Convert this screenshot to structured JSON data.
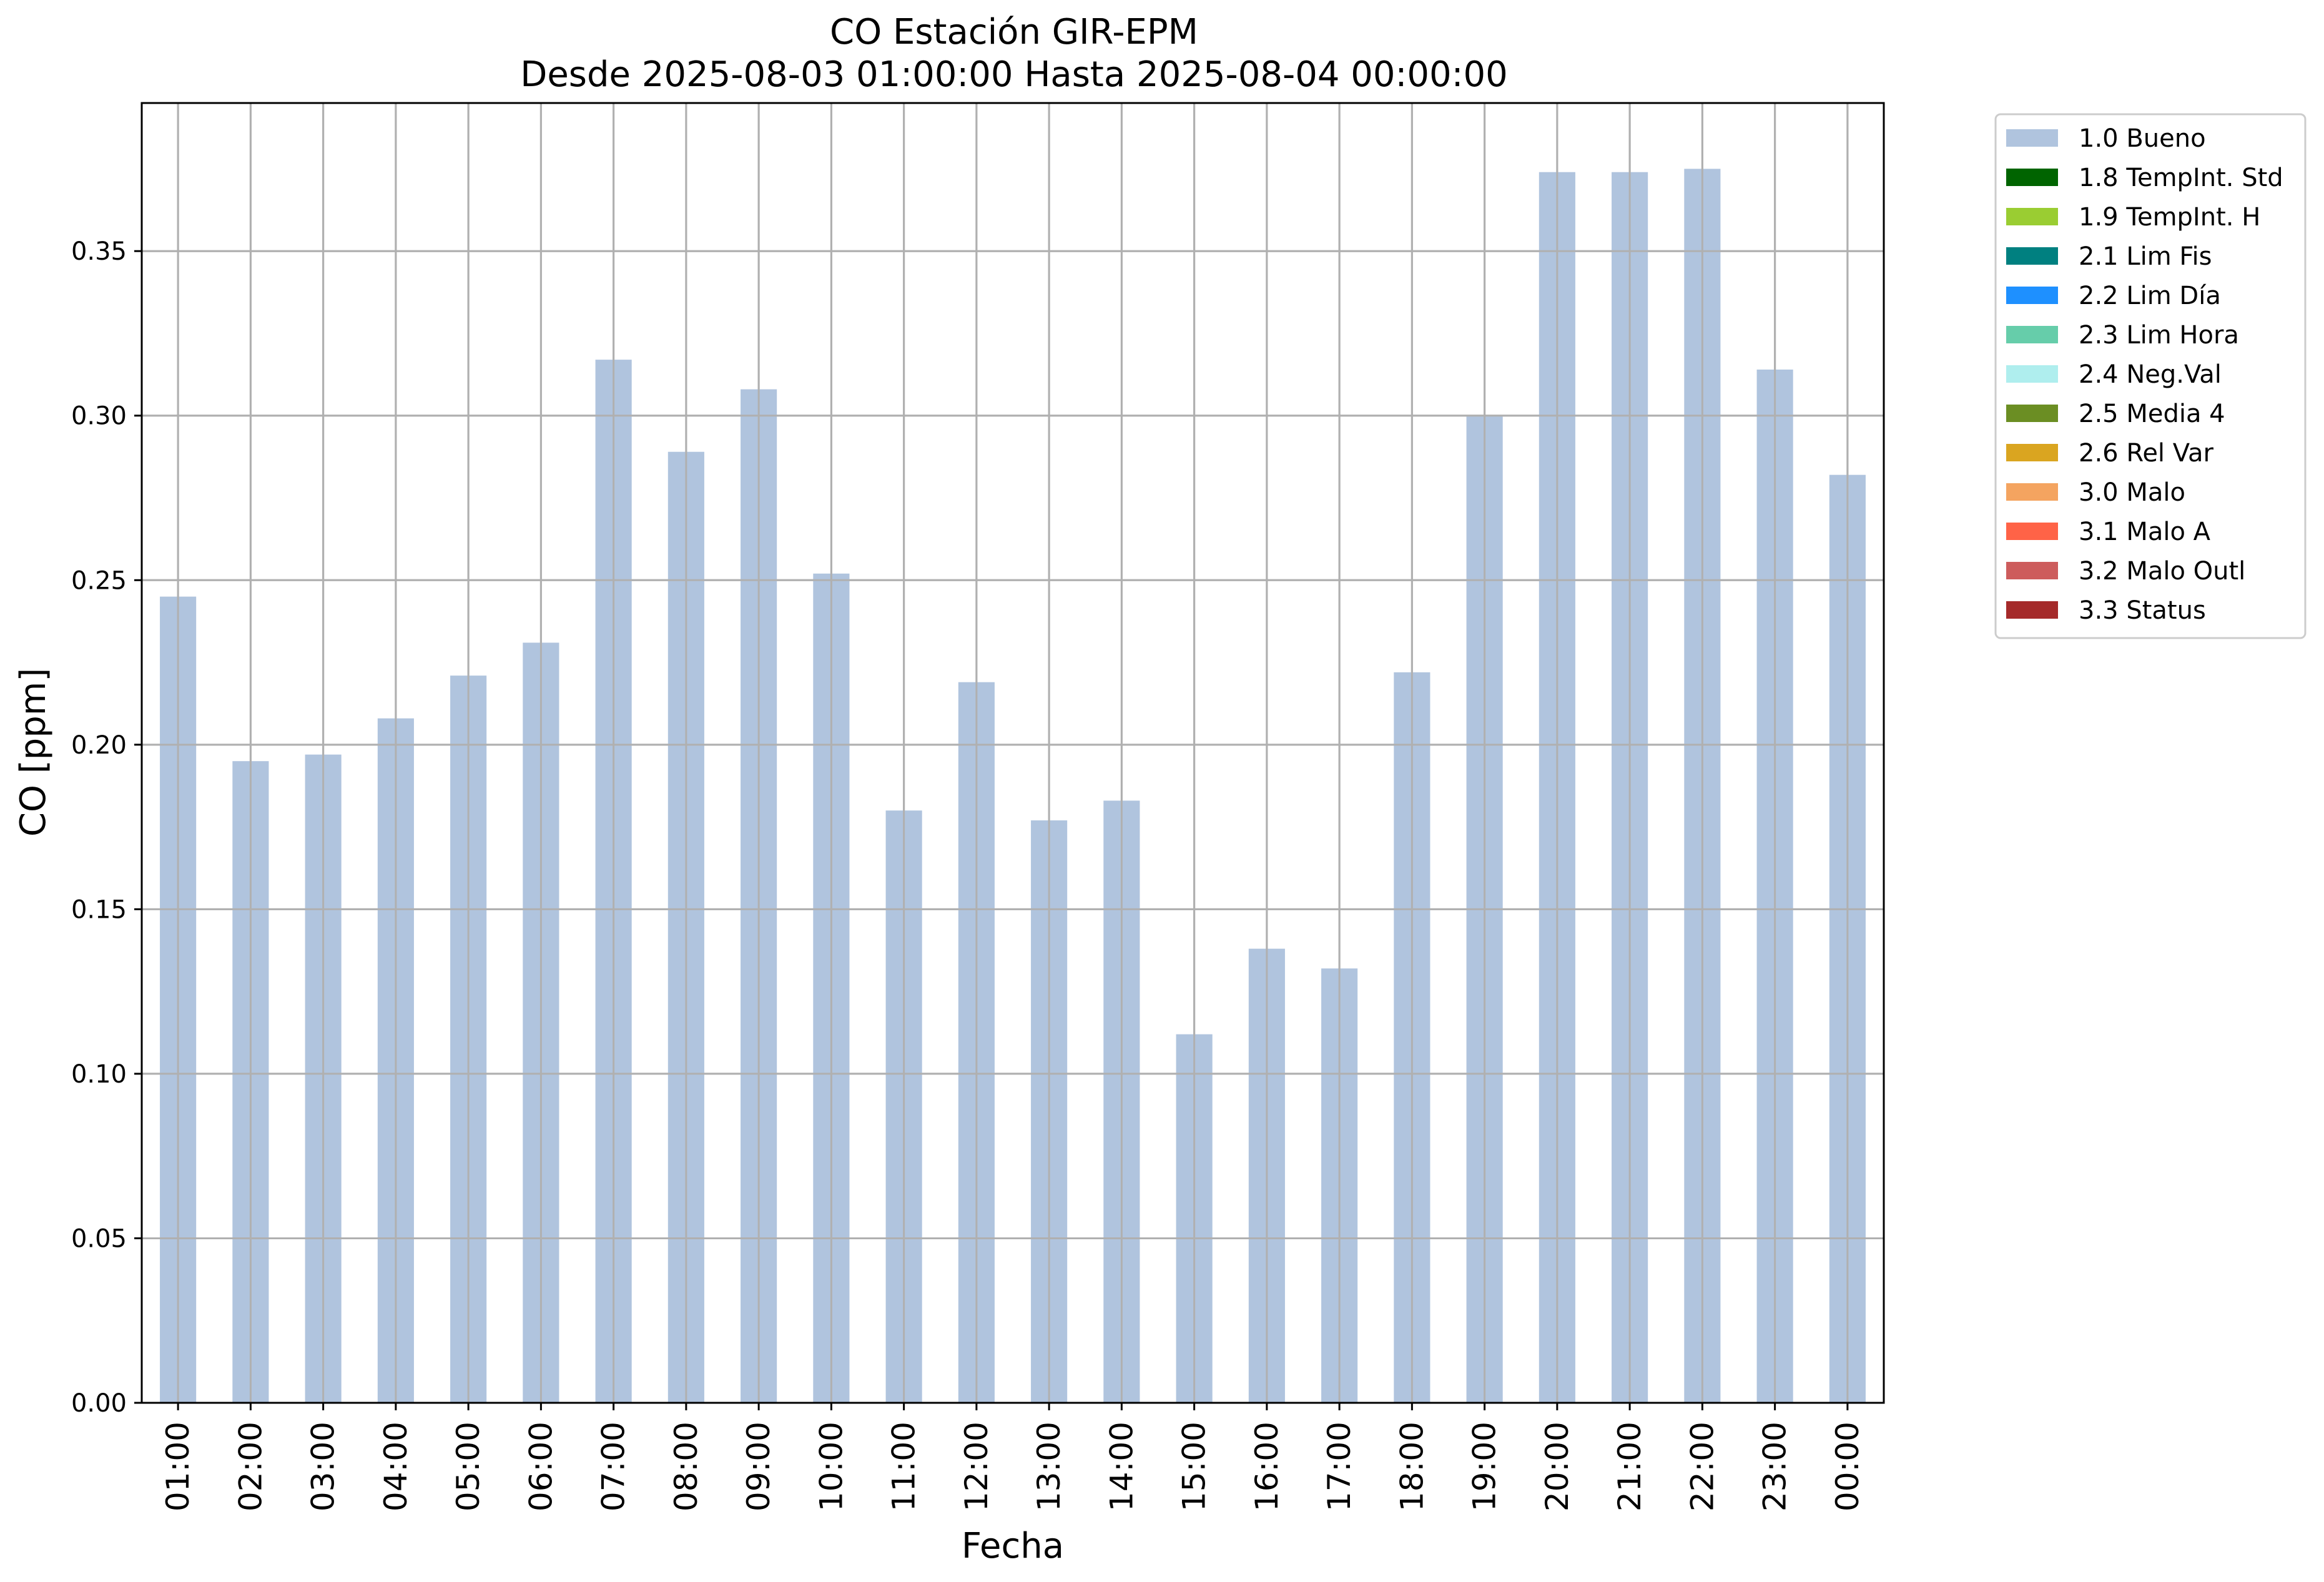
{
  "chart_data": {
    "type": "bar",
    "title": "CO Estación GIR-EPM",
    "subtitle": "Desde 2025-08-03 01:00:00 Hasta 2025-08-04 00:00:00",
    "xlabel": "Fecha",
    "ylabel": "CO [ppm]",
    "ylim": [
      0,
      0.395
    ],
    "yticks": [
      "0.00",
      "0.05",
      "0.10",
      "0.15",
      "0.20",
      "0.25",
      "0.30",
      "0.35"
    ],
    "grid": true,
    "legend_position": "outside-top-right",
    "categories": [
      "01:00",
      "02:00",
      "03:00",
      "04:00",
      "05:00",
      "06:00",
      "07:00",
      "08:00",
      "09:00",
      "10:00",
      "11:00",
      "12:00",
      "13:00",
      "14:00",
      "15:00",
      "16:00",
      "17:00",
      "18:00",
      "19:00",
      "20:00",
      "21:00",
      "22:00",
      "23:00",
      "00:00"
    ],
    "series": [
      {
        "name": "1.0 Bueno",
        "color": "#b0c4de",
        "values": [
          0.245,
          0.195,
          0.197,
          0.208,
          0.221,
          0.231,
          0.317,
          0.289,
          0.308,
          0.252,
          0.18,
          0.219,
          0.177,
          0.183,
          0.112,
          0.138,
          0.132,
          0.222,
          0.3,
          0.374,
          0.374,
          0.375,
          0.314,
          0.282
        ]
      }
    ],
    "legend": [
      {
        "label": "1.0 Bueno",
        "color": "#b0c4de"
      },
      {
        "label": "1.8 TempInt. Std",
        "color": "#006400"
      },
      {
        "label": "1.9 TempInt. H",
        "color": "#9acd32"
      },
      {
        "label": "2.1 Lim Fis",
        "color": "#008080"
      },
      {
        "label": "2.2 Lim Día",
        "color": "#1e90ff"
      },
      {
        "label": "2.3 Lim Hora",
        "color": "#66cdaa"
      },
      {
        "label": "2.4 Neg.Val",
        "color": "#afeeee"
      },
      {
        "label": "2.5 Media 4",
        "color": "#6b8e23"
      },
      {
        "label": "2.6 Rel Var",
        "color": "#daa520"
      },
      {
        "label": "3.0 Malo",
        "color": "#f4a460"
      },
      {
        "label": "3.1 Malo A",
        "color": "#ff6347"
      },
      {
        "label": "3.2 Malo Outl",
        "color": "#cd5c5c"
      },
      {
        "label": "3.3 Status",
        "color": "#a52a2a"
      }
    ]
  }
}
